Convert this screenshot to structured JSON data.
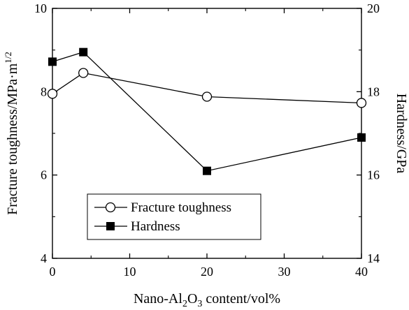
{
  "chart_data": {
    "type": "line",
    "x": [
      0,
      4,
      20,
      40
    ],
    "xlim": [
      0,
      40
    ],
    "xticks": [
      0,
      10,
      20,
      30,
      40
    ],
    "xlabel": {
      "prefix": "Nano-Al",
      "sub1": "2",
      "mid": "O",
      "sub2": "3",
      "suffix": " content/vol%"
    },
    "y_left": {
      "label": {
        "main": "Fracture toughness/MPa·m",
        "sup": "1/2"
      },
      "lim": [
        4,
        10
      ],
      "ticks": [
        4,
        6,
        8,
        10
      ]
    },
    "y_right": {
      "label": "Hardness/GPa",
      "lim": [
        14,
        20
      ],
      "ticks": [
        14,
        16,
        18,
        20
      ]
    },
    "series": [
      {
        "name": "Fracture toughness",
        "axis": "left",
        "marker": "open-circle",
        "values": [
          7.95,
          8.45,
          7.88,
          7.73
        ]
      },
      {
        "name": "Hardness",
        "axis": "right",
        "marker": "filled-square",
        "values": [
          18.72,
          18.95,
          16.1,
          16.9
        ]
      }
    ],
    "legend_position": "lower-left",
    "grid": false
  }
}
